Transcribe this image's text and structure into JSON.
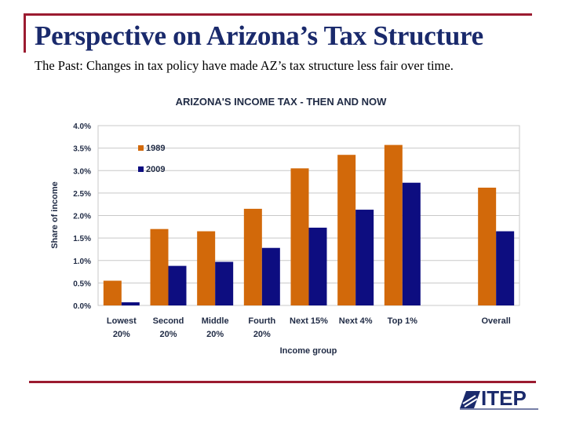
{
  "slide": {
    "title": "Perspective on Arizona’s Tax Structure",
    "subtitle": "The Past:  Changes in tax policy have made AZ’s tax structure less fair over time."
  },
  "logo": {
    "text": "ITEP"
  },
  "colors": {
    "accent": "#9b1b30",
    "title": "#1a2a6c",
    "series1989": "#d2690a",
    "series2009": "#0d0d80",
    "grid": "#c8c8c8"
  },
  "chart_data": {
    "type": "bar",
    "title": "ARIZONA'S INCOME TAX - THEN AND NOW",
    "xlabel": "Income group",
    "ylabel": "Share of income",
    "ylim": [
      0,
      4.0
    ],
    "yticks": [
      "0.0%",
      "0.5%",
      "1.0%",
      "1.5%",
      "2.0%",
      "2.5%",
      "3.0%",
      "3.5%",
      "4.0%"
    ],
    "categories": [
      [
        "Lowest",
        "20%"
      ],
      [
        "Second",
        "20%"
      ],
      [
        "Middle",
        "20%"
      ],
      [
        "Fourth",
        "20%"
      ],
      [
        "Next 15%"
      ],
      [
        "Next 4%"
      ],
      [
        "Top 1%"
      ],
      [],
      [
        "Overall"
      ]
    ],
    "legend_position": "top-left",
    "series": [
      {
        "name": "1989",
        "color": "#d2690a",
        "values": [
          0.55,
          1.7,
          1.65,
          2.15,
          3.05,
          3.35,
          3.57,
          null,
          2.62
        ]
      },
      {
        "name": "2009",
        "color": "#0d0d80",
        "values": [
          0.07,
          0.88,
          0.97,
          1.28,
          1.73,
          2.13,
          2.73,
          null,
          1.65
        ]
      }
    ]
  }
}
